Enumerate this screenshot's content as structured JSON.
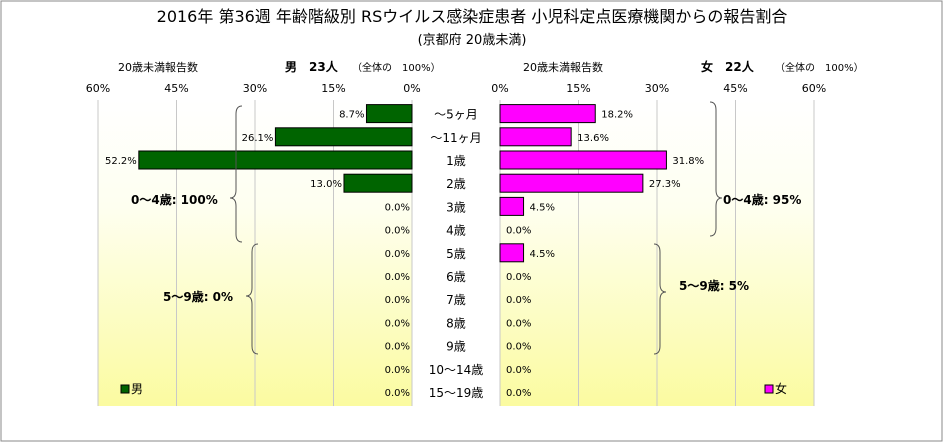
{
  "chart_data": {
    "type": "bar",
    "title": "2016年 第36週 年齢階級別 RSウイルス感染症患者 小児科定点医療機関からの報告割合",
    "subtitle": "(京都府 20歳未満)",
    "categories": [
      "～5ヶ月",
      "～11ヶ月",
      "1歳",
      "2歳",
      "3歳",
      "4歳",
      "5歳",
      "6歳",
      "7歳",
      "8歳",
      "9歳",
      "10～14歳",
      "15～19歳"
    ],
    "left_panel": {
      "header_count_label": "20歳未満報告数",
      "header_total": "男　23人",
      "header_note": "（全体の　100%）",
      "ticks": [
        "60%",
        "45%",
        "30%",
        "15%",
        "0%"
      ]
    },
    "right_panel": {
      "header_count_label": "20歳未満報告数",
      "header_total": "女　22人",
      "header_note": "（全体の　100%）",
      "ticks": [
        "0%",
        "15%",
        "30%",
        "45%",
        "60%"
      ]
    },
    "xlim": [
      0,
      60
    ],
    "series": [
      {
        "name": "男",
        "color": "#006400",
        "values": [
          8.7,
          26.1,
          52.2,
          13.0,
          0.0,
          0.0,
          0.0,
          0.0,
          0.0,
          0.0,
          0.0,
          0.0,
          0.0
        ],
        "labels": [
          "8.7%",
          "26.1%",
          "52.2%",
          "13.0%",
          "0.0%",
          "0.0%",
          "0.0%",
          "0.0%",
          "0.0%",
          "0.0%",
          "0.0%",
          "0.0%",
          "0.0%"
        ]
      },
      {
        "name": "女",
        "color": "#ff00ff",
        "values": [
          18.2,
          13.6,
          31.8,
          27.3,
          4.5,
          0.0,
          4.5,
          0.0,
          0.0,
          0.0,
          0.0,
          0.0,
          0.0
        ],
        "labels": [
          "18.2%",
          "13.6%",
          "31.8%",
          "27.3%",
          "4.5%",
          "0.0%",
          "4.5%",
          "0.0%",
          "0.0%",
          "0.0%",
          "0.0%",
          "0.0%",
          "0.0%"
        ]
      }
    ],
    "annotations": {
      "male_0_4": "0～4歳: 100%",
      "male_5_9": "5～9歳: 0%",
      "female_0_4": "0～4歳: 95%",
      "female_5_9": "5～9歳: 5%"
    },
    "legend": {
      "male": "男",
      "female": "女",
      "placement": "bottom"
    },
    "background": "#ffff99"
  }
}
